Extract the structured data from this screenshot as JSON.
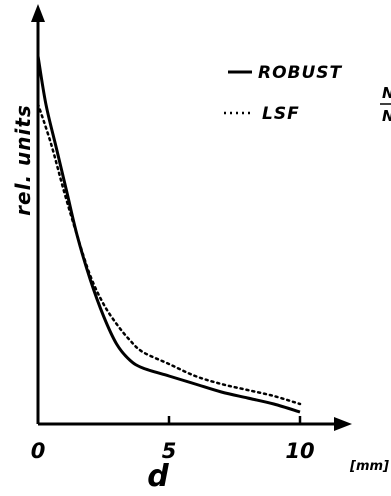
{
  "chart_data": {
    "type": "line",
    "xlabel": "d",
    "xunit": "[mm]",
    "ylabel": "rel. units",
    "xlim": [
      0,
      11.5
    ],
    "ylim": [
      0,
      1.0
    ],
    "x_ticks": [
      0,
      5,
      10
    ],
    "x_tick_labels": [
      "0",
      "5",
      "10"
    ],
    "grid": false,
    "legend_position": "top-right",
    "series": [
      {
        "name": "ROBUST",
        "style": "solid",
        "x": [
          0,
          0.3,
          0.7,
          1.1,
          1.5,
          2.0,
          2.5,
          3.0,
          3.5,
          4.0,
          5.0,
          6.0,
          7.0,
          8.0,
          9.0,
          10.0
        ],
        "y": [
          0.92,
          0.8,
          0.69,
          0.58,
          0.47,
          0.36,
          0.27,
          0.2,
          0.16,
          0.14,
          0.12,
          0.1,
          0.08,
          0.065,
          0.05,
          0.03
        ]
      },
      {
        "name": "LSF",
        "style": "dotted",
        "x": [
          0,
          0.5,
          1.0,
          1.5,
          2.0,
          2.5,
          3.0,
          3.5,
          4.0,
          5.0,
          6.0,
          7.0,
          8.0,
          9.0,
          10.0
        ],
        "y": [
          0.8,
          0.7,
          0.58,
          0.47,
          0.37,
          0.3,
          0.25,
          0.21,
          0.18,
          0.15,
          0.12,
          0.1,
          0.085,
          0.07,
          0.05
        ]
      }
    ],
    "cut_text": "N"
  }
}
